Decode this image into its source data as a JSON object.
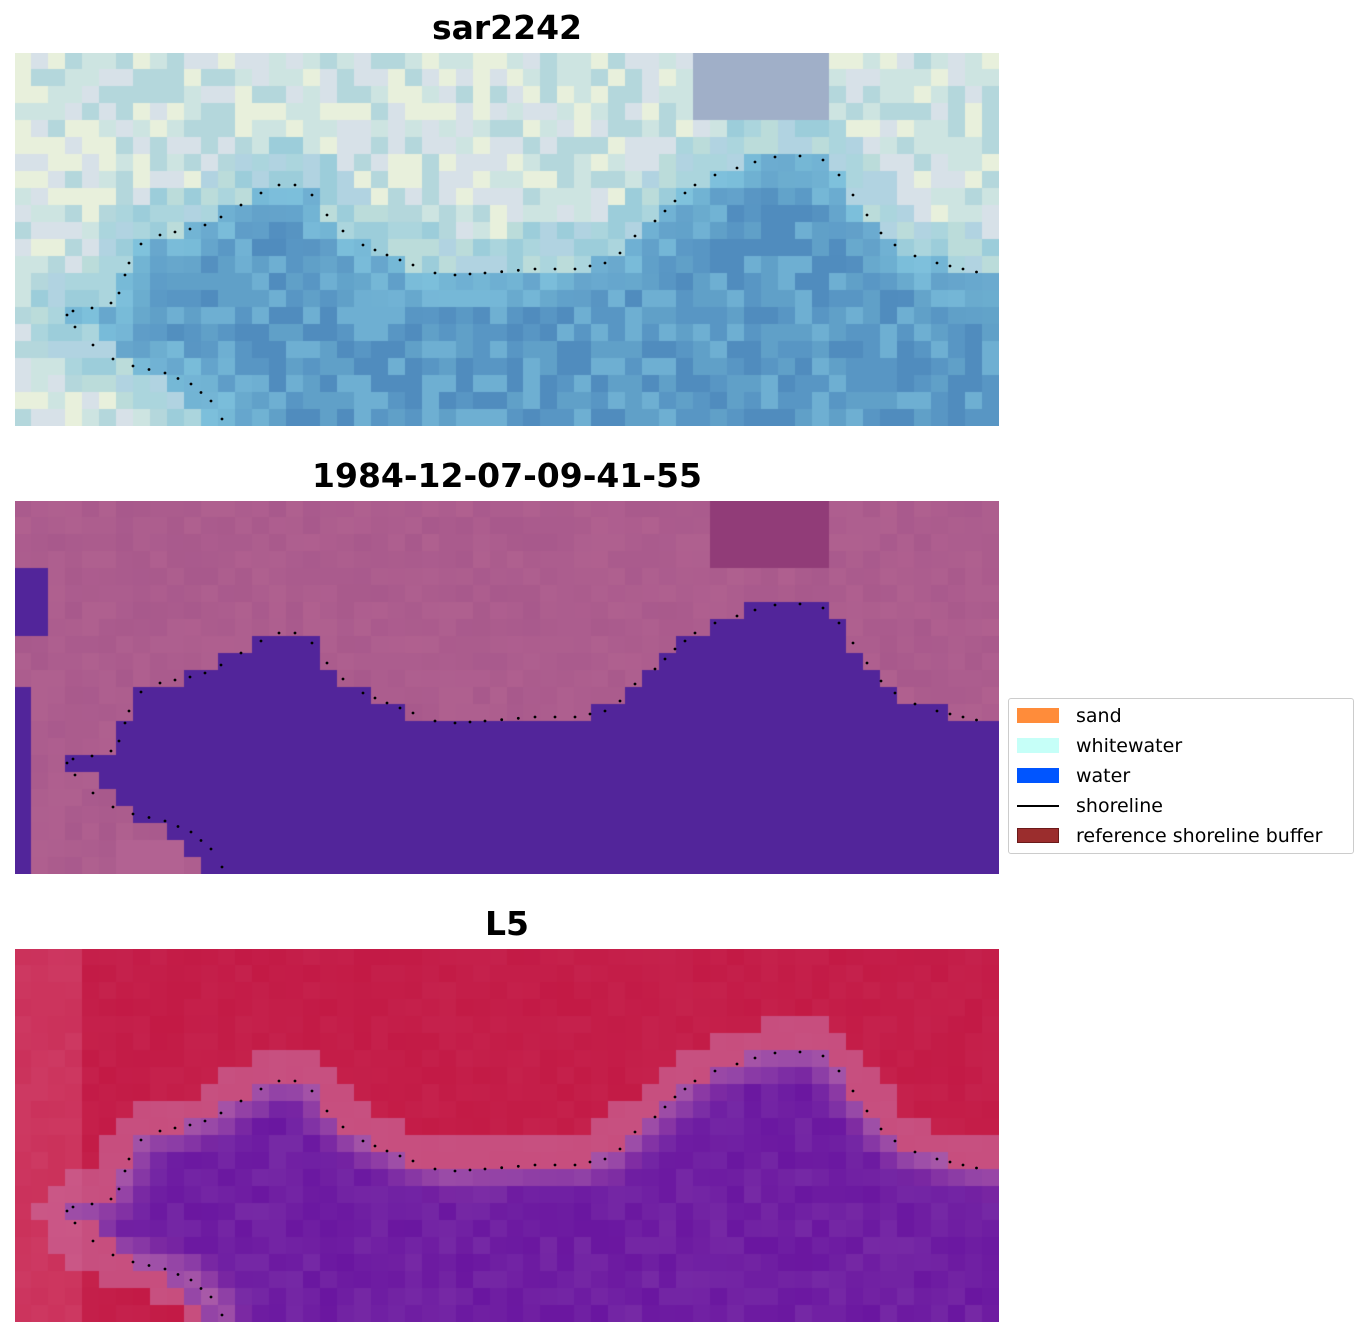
{
  "panels": [
    {
      "title": "sar2242",
      "kind": "rgb"
    },
    {
      "title": "1984-12-07-09-41-55",
      "kind": "classified"
    },
    {
      "title": "L5",
      "kind": "mndwi"
    }
  ],
  "legend": {
    "items": [
      {
        "label": "sand",
        "color": "#ff8c3a",
        "type": "patch"
      },
      {
        "label": "whitewater",
        "color": "#c6fff8",
        "type": "patch"
      },
      {
        "label": "water",
        "color": "#0055ff",
        "type": "patch"
      },
      {
        "label": "shoreline",
        "color": "#000000",
        "type": "line"
      },
      {
        "label": "reference shoreline buffer",
        "color": "#9b2d2d",
        "type": "patch"
      }
    ]
  },
  "colors": {
    "classified_water": "#52259a",
    "classified_land": "#a8598c",
    "mndwi_land": "#c0123e",
    "mndwi_water": "#6a16a0",
    "shoreline_points": "#000000"
  }
}
